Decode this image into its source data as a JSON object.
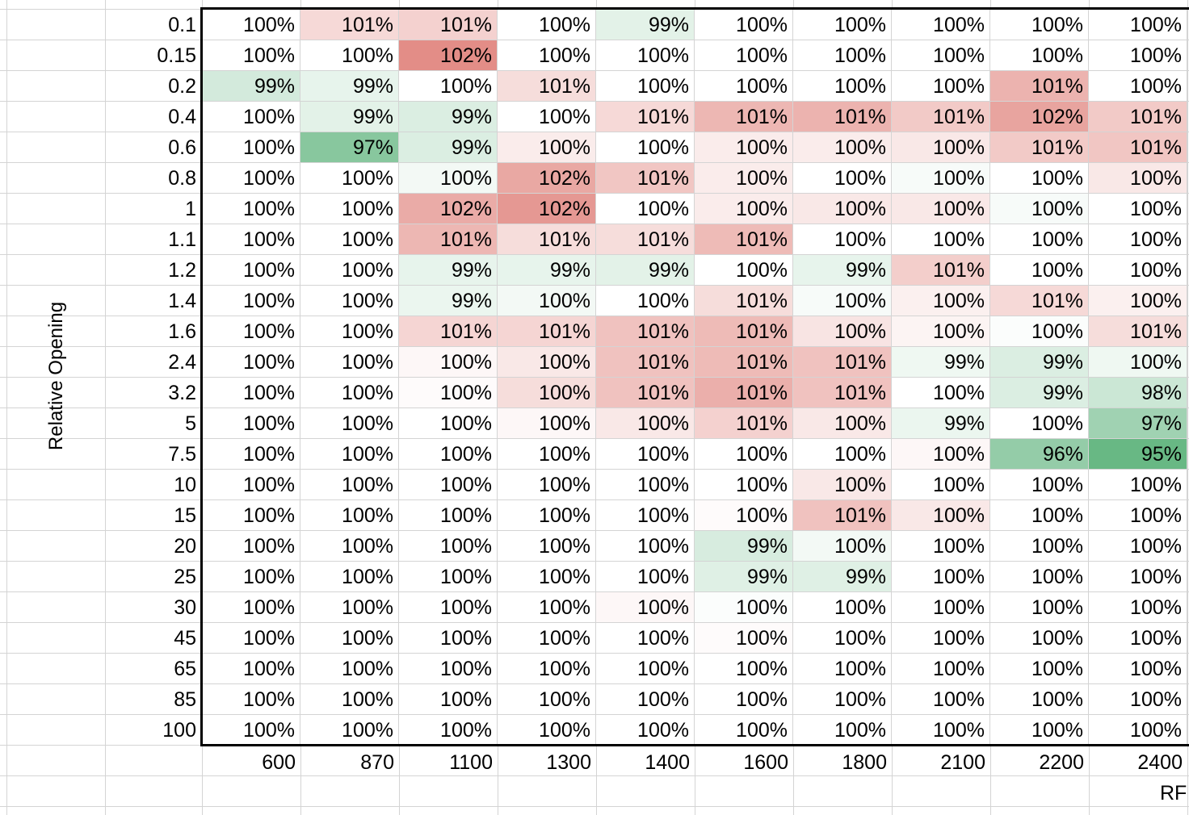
{
  "chart_data": {
    "type": "heatmap",
    "ylabel": "Relative Opening",
    "xlabel": "RF",
    "x": [
      "600",
      "870",
      "1100",
      "1300",
      "1400",
      "1600",
      "1800",
      "2100",
      "2200",
      "2400"
    ],
    "y": [
      "0.1",
      "0.15",
      "0.2",
      "0.4",
      "0.6",
      "0.8",
      "1",
      "1.1",
      "1.2",
      "1.4",
      "1.6",
      "2.4",
      "3.2",
      "5",
      "7.5",
      "10",
      "15",
      "20",
      "25",
      "30",
      "45",
      "65",
      "85",
      "100"
    ],
    "values": [
      [
        100,
        101,
        101,
        100,
        99,
        100,
        100,
        100,
        100,
        100
      ],
      [
        100,
        100,
        102,
        100,
        100,
        100,
        100,
        100,
        100,
        100
      ],
      [
        99,
        99,
        100,
        101,
        100,
        100,
        100,
        100,
        101,
        100
      ],
      [
        100,
        99,
        99,
        100,
        101,
        101,
        101,
        101,
        102,
        101
      ],
      [
        100,
        97,
        99,
        100,
        100,
        100,
        100,
        100,
        101,
        101
      ],
      [
        100,
        100,
        100,
        102,
        101,
        100,
        100,
        100,
        100,
        100
      ],
      [
        100,
        100,
        102,
        102,
        100,
        100,
        100,
        100,
        100,
        100
      ],
      [
        100,
        100,
        101,
        101,
        101,
        101,
        100,
        100,
        100,
        100
      ],
      [
        100,
        100,
        99,
        99,
        99,
        100,
        99,
        101,
        100,
        100
      ],
      [
        100,
        100,
        99,
        100,
        100,
        101,
        100,
        100,
        101,
        100
      ],
      [
        100,
        100,
        101,
        101,
        101,
        101,
        100,
        100,
        100,
        101
      ],
      [
        100,
        100,
        100,
        100,
        101,
        101,
        101,
        99,
        99,
        100
      ],
      [
        100,
        100,
        100,
        100,
        101,
        101,
        101,
        100,
        99,
        98
      ],
      [
        100,
        100,
        100,
        100,
        100,
        101,
        100,
        99,
        100,
        97
      ],
      [
        100,
        100,
        100,
        100,
        100,
        100,
        100,
        100,
        96,
        95
      ],
      [
        100,
        100,
        100,
        100,
        100,
        100,
        100,
        100,
        100,
        100
      ],
      [
        100,
        100,
        100,
        100,
        100,
        100,
        101,
        100,
        100,
        100
      ],
      [
        100,
        100,
        100,
        100,
        100,
        99,
        100,
        100,
        100,
        100
      ],
      [
        100,
        100,
        100,
        100,
        100,
        99,
        99,
        100,
        100,
        100
      ],
      [
        100,
        100,
        100,
        100,
        100,
        100,
        100,
        100,
        100,
        100
      ],
      [
        100,
        100,
        100,
        100,
        100,
        100,
        100,
        100,
        100,
        100
      ],
      [
        100,
        100,
        100,
        100,
        100,
        100,
        100,
        100,
        100,
        100
      ],
      [
        100,
        100,
        100,
        100,
        100,
        100,
        100,
        100,
        100,
        100
      ],
      [
        100,
        100,
        100,
        100,
        100,
        100,
        100,
        100,
        100,
        100
      ]
    ],
    "shade": [
      [
        0,
        0.5,
        0.6,
        0,
        -0.35,
        0,
        0,
        0,
        0,
        0
      ],
      [
        0,
        0,
        1.5,
        0,
        0,
        0,
        0,
        0,
        0,
        0
      ],
      [
        -0.55,
        -0.3,
        0,
        0.45,
        0,
        0,
        0,
        0,
        1.0,
        0
      ],
      [
        0,
        -0.35,
        -0.45,
        0,
        0.5,
        0.95,
        1.0,
        0.7,
        1.2,
        0.7
      ],
      [
        0,
        -1.5,
        -0.45,
        0.25,
        0,
        0.25,
        0.25,
        0.3,
        0.7,
        0.75
      ],
      [
        0,
        0,
        -0.15,
        1.15,
        0.75,
        0.25,
        0,
        -0.1,
        0,
        0.3
      ],
      [
        0,
        0,
        1.1,
        1.35,
        0,
        0.25,
        0.3,
        0.3,
        -0.1,
        0
      ],
      [
        0,
        0,
        0.95,
        0.45,
        0.45,
        0.9,
        0,
        0,
        0,
        0
      ],
      [
        0,
        0,
        -0.3,
        -0.3,
        -0.35,
        0,
        -0.3,
        0.65,
        0,
        0
      ],
      [
        0,
        0,
        -0.25,
        -0.15,
        0,
        0.45,
        -0.1,
        0.2,
        0.5,
        0.2
      ],
      [
        0,
        0,
        0.55,
        0.55,
        0.8,
        0.9,
        0.35,
        0.15,
        -0.05,
        0.45
      ],
      [
        0,
        0,
        0.1,
        0.3,
        0.8,
        0.9,
        0.8,
        -0.2,
        -0.45,
        -0.2
      ],
      [
        0,
        0,
        0.05,
        0.45,
        0.8,
        1.05,
        0.8,
        0,
        -0.45,
        -0.65
      ],
      [
        0,
        0,
        0,
        0.1,
        0.3,
        0.6,
        0.3,
        -0.25,
        0,
        -1.2
      ],
      [
        0,
        0,
        0,
        0,
        0,
        0,
        0,
        0.1,
        -1.35,
        -1.9
      ],
      [
        0,
        0,
        0,
        0,
        0,
        0,
        0.3,
        0,
        0,
        0
      ],
      [
        0,
        0,
        0,
        0,
        0,
        0.05,
        0.8,
        0.3,
        0,
        0
      ],
      [
        0,
        0,
        0,
        0,
        0,
        -0.5,
        -0.15,
        0,
        0,
        0
      ],
      [
        0,
        0,
        0,
        0,
        0,
        -0.4,
        -0.4,
        0,
        0,
        0
      ],
      [
        0,
        0,
        0,
        0,
        0.1,
        -0.05,
        0,
        0,
        0,
        0
      ],
      [
        0,
        0,
        0,
        0,
        0,
        0.05,
        0,
        0,
        0,
        0
      ],
      [
        0,
        0,
        0,
        0,
        0,
        0,
        0,
        0,
        0,
        0
      ],
      [
        0,
        0,
        0,
        0,
        0,
        0,
        0,
        0,
        0,
        0
      ],
      [
        0,
        0,
        0,
        0,
        0,
        0,
        0,
        0,
        0,
        0
      ]
    ],
    "value_suffix": "%",
    "colors": {
      "high": "#d9675f",
      "low": "#60b47e",
      "neutral": "#ffffff"
    },
    "grid": true
  }
}
